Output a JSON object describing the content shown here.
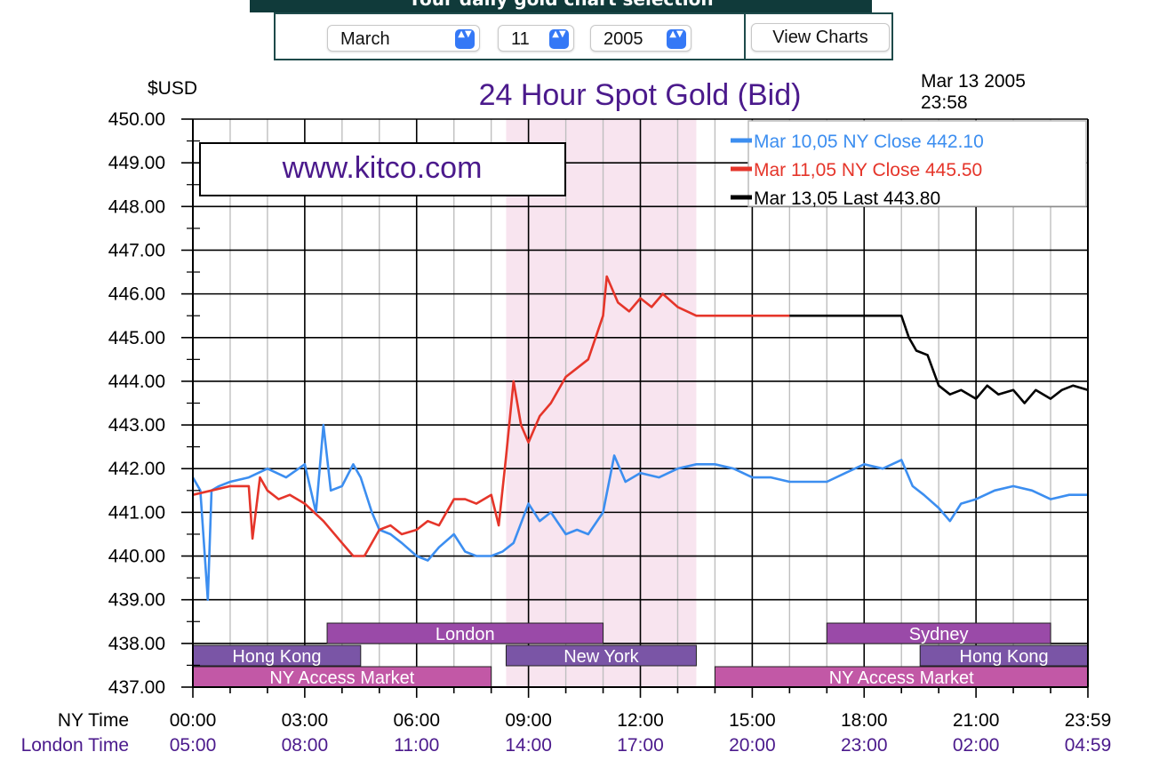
{
  "banner": {
    "title": "Your daily gold chart selection"
  },
  "form": {
    "month": "March",
    "day": "11",
    "year": "2005",
    "submit_label": "View Charts",
    "spinner_glyph": "▲▼"
  },
  "chart_data": {
    "type": "line",
    "title": "24 Hour Spot Gold (Bid)",
    "ylabel": "$USD",
    "timestamp_line1": "Mar 13 2005",
    "timestamp_line2": "23:58",
    "watermark": "www.kitco.com",
    "ylim": [
      437,
      450
    ],
    "y_ticks": [
      "450.00",
      "449.00",
      "448.00",
      "447.00",
      "446.00",
      "445.00",
      "444.00",
      "443.00",
      "442.00",
      "441.00",
      "440.00",
      "439.00",
      "438.00",
      "437.00"
    ],
    "x_unit": "hours (NY time)",
    "xlim": [
      0,
      24
    ],
    "x_axis_rows": [
      {
        "label": "NY Time",
        "ticks": [
          "00:00",
          "03:00",
          "06:00",
          "09:00",
          "12:00",
          "15:00",
          "18:00",
          "21:00",
          "23:59"
        ]
      },
      {
        "label": "London Time",
        "ticks": [
          "05:00",
          "08:00",
          "11:00",
          "14:00",
          "17:00",
          "20:00",
          "23:00",
          "02:00",
          "04:59"
        ]
      }
    ],
    "highlight_band": {
      "x_start": 8.4,
      "x_end": 13.5,
      "color": "#f8e4ef"
    },
    "sessions": [
      {
        "label": "London",
        "x_start": 3.6,
        "x_end": 11.0,
        "row": 1,
        "color": "#9a4aa8"
      },
      {
        "label": "Hong Kong",
        "x_start": 0.0,
        "x_end": 4.5,
        "row": 2,
        "color": "#7a55a6"
      },
      {
        "label": "New York",
        "x_start": 8.4,
        "x_end": 13.5,
        "row": 2,
        "color": "#7a55a6"
      },
      {
        "label": "NY Access Market",
        "x_start": 0.0,
        "x_end": 8.0,
        "row": 3,
        "color": "#c258a6"
      },
      {
        "label": "Sydney",
        "x_start": 17.0,
        "x_end": 23.0,
        "row": 1,
        "color": "#9a4aa8"
      },
      {
        "label": "Hong Kong",
        "x_start": 19.5,
        "x_end": 24.0,
        "row": 2,
        "color": "#7a55a6"
      },
      {
        "label": "NY Access Market",
        "x_start": 14.0,
        "x_end": 24.0,
        "row": 3,
        "color": "#c258a6"
      }
    ],
    "legend_position": "top-right",
    "series": [
      {
        "name": "Mar 10,05 NY Close 442.10",
        "color": "#3c8ef0",
        "x": [
          0.0,
          0.2,
          0.4,
          0.5,
          0.7,
          1.0,
          1.5,
          2.0,
          2.5,
          3.0,
          3.3,
          3.5,
          3.7,
          4.0,
          4.3,
          4.5,
          4.8,
          5.0,
          5.3,
          5.6,
          6.0,
          6.3,
          6.6,
          7.0,
          7.3,
          7.6,
          8.0,
          8.3,
          8.6,
          9.0,
          9.3,
          9.6,
          10.0,
          10.3,
          10.6,
          11.0,
          11.3,
          11.6,
          12.0,
          12.5,
          13.0,
          13.5,
          14.0,
          14.5,
          15.0,
          15.5,
          16.0,
          16.5,
          17.0,
          17.5,
          18.0,
          18.5,
          19.0,
          19.3,
          19.6,
          20.0,
          20.3,
          20.6,
          21.0,
          21.5,
          22.0,
          22.5,
          23.0,
          23.5,
          24.0
        ],
        "values": [
          441.8,
          441.5,
          439.0,
          441.5,
          441.6,
          441.7,
          441.8,
          442.0,
          441.8,
          442.1,
          441.0,
          443.0,
          441.5,
          441.6,
          442.1,
          441.8,
          441.0,
          440.6,
          440.5,
          440.3,
          440.0,
          439.9,
          440.2,
          440.5,
          440.1,
          440.0,
          440.0,
          440.1,
          440.3,
          441.2,
          440.8,
          441.0,
          440.5,
          440.6,
          440.5,
          441.0,
          442.3,
          441.7,
          441.9,
          441.8,
          442.0,
          442.1,
          442.1,
          442.0,
          441.8,
          441.8,
          441.7,
          441.7,
          441.7,
          441.9,
          442.1,
          442.0,
          442.2,
          441.6,
          441.4,
          441.1,
          440.8,
          441.2,
          441.3,
          441.5,
          441.6,
          441.5,
          441.3,
          441.4,
          441.4
        ]
      },
      {
        "name": "Mar 11,05 NY Close 445.50",
        "color": "#e5352a",
        "x": [
          0.0,
          0.5,
          1.0,
          1.5,
          1.6,
          1.8,
          2.0,
          2.3,
          2.6,
          3.0,
          3.5,
          4.0,
          4.3,
          4.6,
          5.0,
          5.3,
          5.6,
          6.0,
          6.3,
          6.6,
          7.0,
          7.3,
          7.6,
          8.0,
          8.2,
          8.4,
          8.6,
          8.8,
          9.0,
          9.3,
          9.6,
          10.0,
          10.3,
          10.6,
          11.0,
          11.1,
          11.4,
          11.7,
          12.0,
          12.3,
          12.6,
          13.0,
          13.5,
          14.0,
          14.5,
          15.0,
          15.5,
          16.0
        ],
        "values": [
          441.4,
          441.5,
          441.6,
          441.6,
          440.4,
          441.8,
          441.5,
          441.3,
          441.4,
          441.2,
          440.8,
          440.3,
          440.0,
          440.0,
          440.6,
          440.7,
          440.5,
          440.6,
          440.8,
          440.7,
          441.3,
          441.3,
          441.2,
          441.4,
          440.7,
          442.3,
          444.0,
          443.0,
          442.6,
          443.2,
          443.5,
          444.1,
          444.3,
          444.5,
          445.5,
          446.4,
          445.8,
          445.6,
          445.9,
          445.7,
          446.0,
          445.7,
          445.5,
          445.5,
          445.5,
          445.5,
          445.5,
          445.5
        ]
      },
      {
        "name": "Mar 13,05 Last 443.80",
        "color": "#000000",
        "x": [
          16.0,
          17.0,
          18.0,
          19.0,
          19.2,
          19.4,
          19.7,
          20.0,
          20.3,
          20.6,
          21.0,
          21.3,
          21.6,
          22.0,
          22.3,
          22.6,
          23.0,
          23.3,
          23.6,
          24.0
        ],
        "values": [
          445.5,
          445.5,
          445.5,
          445.5,
          445.0,
          444.7,
          444.6,
          443.9,
          443.7,
          443.8,
          443.6,
          443.9,
          443.7,
          443.8,
          443.5,
          443.8,
          443.6,
          443.8,
          443.9,
          443.8
        ]
      }
    ]
  }
}
